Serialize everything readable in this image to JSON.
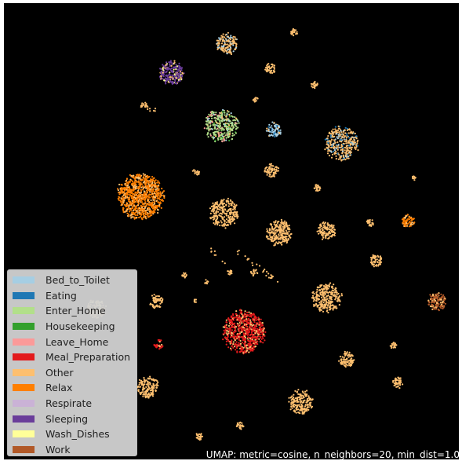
{
  "chart_data": {
    "type": "scatter",
    "title": "",
    "xlabel": "",
    "ylabel": "",
    "axes_visible": false,
    "background": "#000000",
    "legend_position": "bottom-left",
    "caption": "UMAP: metric=cosine, n_neighbors=20, min_dist=1.0",
    "series": [
      {
        "name": "Bed_to_Toilet",
        "color": "#a6cee3"
      },
      {
        "name": "Eating",
        "color": "#1f78b4"
      },
      {
        "name": "Enter_Home",
        "color": "#b2df8a"
      },
      {
        "name": "Housekeeping",
        "color": "#33a02c"
      },
      {
        "name": "Leave_Home",
        "color": "#fb9a99"
      },
      {
        "name": "Meal_Preparation",
        "color": "#e31a1c"
      },
      {
        "name": "Other",
        "color": "#fdbf6f"
      },
      {
        "name": "Relax",
        "color": "#ff7f00"
      },
      {
        "name": "Respirate",
        "color": "#cab2d6"
      },
      {
        "name": "Sleeping",
        "color": "#6a3d9a"
      },
      {
        "name": "Wash_Dishes",
        "color": "#ffff99"
      },
      {
        "name": "Work",
        "color": "#b15928"
      }
    ],
    "clusters": [
      {
        "series": "Other",
        "x": 0.491,
        "y": 0.911,
        "r": 0.024,
        "n": 150,
        "mix": [
          "Bed_to_Toilet"
        ]
      },
      {
        "series": "Other",
        "x": 0.638,
        "y": 0.936,
        "r": 0.008,
        "n": 25
      },
      {
        "series": "Sleeping",
        "x": 0.368,
        "y": 0.847,
        "r": 0.027,
        "n": 230,
        "mix": [
          "Other",
          "Wash_Dishes"
        ]
      },
      {
        "series": "Other",
        "x": 0.586,
        "y": 0.856,
        "r": 0.012,
        "n": 45
      },
      {
        "series": "Other",
        "x": 0.683,
        "y": 0.821,
        "r": 0.008,
        "n": 20
      },
      {
        "series": "Other",
        "x": 0.553,
        "y": 0.789,
        "r": 0.006,
        "n": 15
      },
      {
        "series": "Other",
        "x": 0.308,
        "y": 0.775,
        "r": 0.008,
        "n": 15
      },
      {
        "series": "Enter_Home",
        "x": 0.478,
        "y": 0.731,
        "r": 0.038,
        "n": 330,
        "mix": [
          "Other",
          "Leave_Home",
          "Housekeeping",
          "Bed_to_Toilet"
        ]
      },
      {
        "series": "Bed_to_Toilet",
        "x": 0.593,
        "y": 0.722,
        "r": 0.017,
        "n": 80,
        "mix": [
          "Eating",
          "Other"
        ]
      },
      {
        "series": "Other",
        "x": 0.742,
        "y": 0.693,
        "r": 0.038,
        "n": 330,
        "mix": [
          "Eating",
          "Bed_to_Toilet"
        ]
      },
      {
        "series": "Other",
        "x": 0.588,
        "y": 0.633,
        "r": 0.016,
        "n": 70
      },
      {
        "series": "Other",
        "x": 0.422,
        "y": 0.629,
        "r": 0.008,
        "n": 15
      },
      {
        "series": "Other",
        "x": 0.688,
        "y": 0.595,
        "r": 0.008,
        "n": 25
      },
      {
        "series": "Other",
        "x": 0.901,
        "y": 0.617,
        "r": 0.005,
        "n": 10
      },
      {
        "series": "Relax",
        "x": 0.3,
        "y": 0.577,
        "r": 0.052,
        "n": 850,
        "mix": [
          "Other"
        ]
      },
      {
        "series": "Other",
        "x": 0.484,
        "y": 0.54,
        "r": 0.032,
        "n": 260
      },
      {
        "series": "Other",
        "x": 0.603,
        "y": 0.497,
        "r": 0.029,
        "n": 210
      },
      {
        "series": "Other",
        "x": 0.709,
        "y": 0.501,
        "r": 0.021,
        "n": 110
      },
      {
        "series": "Other",
        "x": 0.805,
        "y": 0.519,
        "r": 0.008,
        "n": 25
      },
      {
        "series": "Relax",
        "x": 0.889,
        "y": 0.522,
        "r": 0.015,
        "n": 70,
        "mix": [
          "Other"
        ]
      },
      {
        "series": "Other",
        "x": 0.818,
        "y": 0.436,
        "r": 0.014,
        "n": 60
      },
      {
        "series": "Other",
        "x": 0.397,
        "y": 0.404,
        "r": 0.006,
        "n": 15
      },
      {
        "series": "Other",
        "x": 0.445,
        "y": 0.389,
        "r": 0.005,
        "n": 10
      },
      {
        "series": "Other",
        "x": 0.496,
        "y": 0.41,
        "r": 0.006,
        "n": 15
      },
      {
        "series": "Other",
        "x": 0.55,
        "y": 0.41,
        "r": 0.009,
        "n": 20
      },
      {
        "series": "Other",
        "x": 0.709,
        "y": 0.354,
        "r": 0.033,
        "n": 260
      },
      {
        "series": "Work",
        "x": 0.952,
        "y": 0.347,
        "r": 0.021,
        "n": 130,
        "mix": [
          "Other"
        ]
      },
      {
        "series": "Other",
        "x": 0.334,
        "y": 0.346,
        "r": 0.016,
        "n": 60
      },
      {
        "series": "Other",
        "x": 0.42,
        "y": 0.347,
        "r": 0.005,
        "n": 8
      },
      {
        "series": "Other",
        "x": 0.203,
        "y": 0.33,
        "r": 0.022,
        "n": 120,
        "mix": [
          "Wash_Dishes"
        ]
      },
      {
        "series": "Meal_Preparation",
        "x": 0.527,
        "y": 0.28,
        "r": 0.048,
        "n": 680,
        "mix": [
          "Other"
        ]
      },
      {
        "series": "Meal_Preparation",
        "x": 0.34,
        "y": 0.252,
        "r": 0.011,
        "n": 30,
        "mix": [
          "Other"
        ]
      },
      {
        "series": "Other",
        "x": 0.857,
        "y": 0.25,
        "r": 0.008,
        "n": 25
      },
      {
        "series": "Other",
        "x": 0.754,
        "y": 0.22,
        "r": 0.018,
        "n": 85
      },
      {
        "series": "Other",
        "x": 0.866,
        "y": 0.168,
        "r": 0.013,
        "n": 50
      },
      {
        "series": "Other",
        "x": 0.317,
        "y": 0.157,
        "r": 0.025,
        "n": 150
      },
      {
        "series": "Other",
        "x": 0.652,
        "y": 0.126,
        "r": 0.027,
        "n": 180
      },
      {
        "series": "Other",
        "x": 0.519,
        "y": 0.074,
        "r": 0.008,
        "n": 25
      },
      {
        "series": "Other",
        "x": 0.429,
        "y": 0.051,
        "r": 0.008,
        "n": 25
      }
    ],
    "strands": [
      {
        "series": "Other",
        "from": [
          0.302,
          0.781
        ],
        "to": [
          0.332,
          0.762
        ],
        "n": 10
      },
      {
        "series": "Other",
        "from": [
          0.51,
          0.458
        ],
        "to": [
          0.604,
          0.388
        ],
        "n": 25
      },
      {
        "series": "Other",
        "from": [
          0.45,
          0.46
        ],
        "to": [
          0.5,
          0.42
        ],
        "n": 8
      }
    ]
  }
}
